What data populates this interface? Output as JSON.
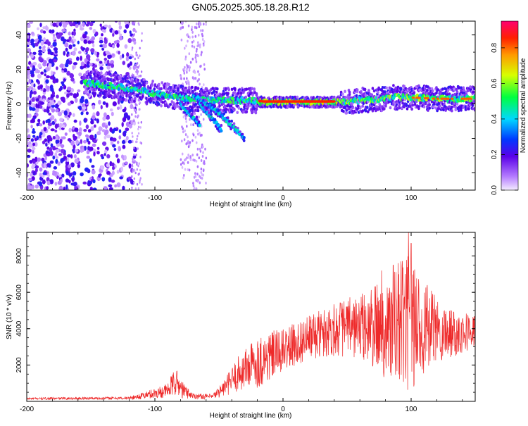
{
  "chart_data": [
    {
      "type": "heatmap",
      "title": "GN05.2025.305.18.28.R12",
      "xlabel": "Height of straight line (km)",
      "ylabel": "Frequency (Hz)",
      "xlim": [
        -200,
        150
      ],
      "ylim": [
        -50,
        48
      ],
      "x_ticks": [
        -200,
        -100,
        0,
        100
      ],
      "y_ticks": [
        -40,
        -20,
        0,
        20,
        40
      ],
      "x_tick_labels": [
        "-200",
        "-100",
        "0",
        "100"
      ],
      "y_tick_labels": [
        "-40",
        "-20",
        "0",
        "20",
        "40"
      ],
      "colorbar": {
        "label": "Normalized spectral amplitude",
        "range": [
          0,
          0.95
        ],
        "ticks": [
          0.0,
          0.2,
          0.4,
          0.6,
          0.8
        ],
        "tick_labels": [
          "0.0",
          "0.2",
          "0.4",
          "0.6",
          "0.8"
        ]
      },
      "features": {
        "noise_region_x": [
          -200,
          -115
        ],
        "noise_band_x": [
          -80,
          -60
        ],
        "main_ridge": [
          {
            "x": -150,
            "y": 12
          },
          {
            "x": -120,
            "y": 9
          },
          {
            "x": -100,
            "y": 6
          },
          {
            "x": -75,
            "y": 3
          },
          {
            "x": -50,
            "y": 2
          },
          {
            "x": -25,
            "y": 2
          },
          {
            "x": -15,
            "y": 1
          },
          {
            "x": 40,
            "y": 1
          },
          {
            "x": 60,
            "y": 2
          },
          {
            "x": 90,
            "y": 4
          },
          {
            "x": 120,
            "y": 3
          },
          {
            "x": 150,
            "y": 3
          }
        ],
        "secondary_branches": [
          [
            {
              "x": -80,
              "y": 0
            },
            {
              "x": -65,
              "y": -12
            }
          ],
          [
            {
              "x": -70,
              "y": 5
            },
            {
              "x": -50,
              "y": -5
            },
            {
              "x": -30,
              "y": -20
            }
          ],
          [
            {
              "x": -65,
              "y": 0
            },
            {
              "x": -48,
              "y": -15
            }
          ]
        ],
        "peak_segment_x": [
          -18,
          40
        ]
      }
    },
    {
      "type": "line",
      "xlabel": "Height of straight line (km)",
      "ylabel": "SNR (10 * v/v)",
      "xlim": [
        -200,
        150
      ],
      "ylim": [
        0,
        9300
      ],
      "x_ticks": [
        -200,
        -100,
        0,
        100
      ],
      "y_ticks": [
        2000,
        4000,
        6000,
        8000
      ],
      "x_tick_labels": [
        "-200",
        "-100",
        "0",
        "100"
      ],
      "y_tick_labels": [
        "2000",
        "4000",
        "6000",
        "8000"
      ],
      "color": "#ee2a2a",
      "envelope": [
        {
          "x": -200,
          "mean": 150,
          "amp": 60
        },
        {
          "x": -120,
          "mean": 180,
          "amp": 80
        },
        {
          "x": -110,
          "mean": 300,
          "amp": 180
        },
        {
          "x": -90,
          "mean": 600,
          "amp": 400
        },
        {
          "x": -84,
          "mean": 1100,
          "amp": 800
        },
        {
          "x": -78,
          "mean": 600,
          "amp": 450
        },
        {
          "x": -70,
          "mean": 300,
          "amp": 150
        },
        {
          "x": -55,
          "mean": 250,
          "amp": 150
        },
        {
          "x": -45,
          "mean": 800,
          "amp": 500
        },
        {
          "x": -35,
          "mean": 1500,
          "amp": 1000
        },
        {
          "x": -25,
          "mean": 2000,
          "amp": 1300
        },
        {
          "x": -15,
          "mean": 2300,
          "amp": 1500
        },
        {
          "x": 0,
          "mean": 2800,
          "amp": 1200
        },
        {
          "x": 20,
          "mean": 3500,
          "amp": 1200
        },
        {
          "x": 40,
          "mean": 4000,
          "amp": 1500
        },
        {
          "x": 60,
          "mean": 4100,
          "amp": 1800
        },
        {
          "x": 80,
          "mean": 4000,
          "amp": 2800
        },
        {
          "x": 90,
          "mean": 4200,
          "amp": 3500
        },
        {
          "x": 100,
          "mean": 4300,
          "amp": 3800
        },
        {
          "x": 110,
          "mean": 4100,
          "amp": 2600
        },
        {
          "x": 120,
          "mean": 3900,
          "amp": 1800
        },
        {
          "x": 135,
          "mean": 3800,
          "amp": 1300
        },
        {
          "x": 150,
          "mean": 3900,
          "amp": 900
        }
      ],
      "peaks": [
        {
          "x": 98,
          "y": 9300
        },
        {
          "x": 100,
          "y": 8700
        },
        {
          "x": 92,
          "y": 7700
        },
        {
          "x": 77,
          "y": 7200
        },
        {
          "x": 86,
          "y": 7500
        }
      ]
    }
  ]
}
